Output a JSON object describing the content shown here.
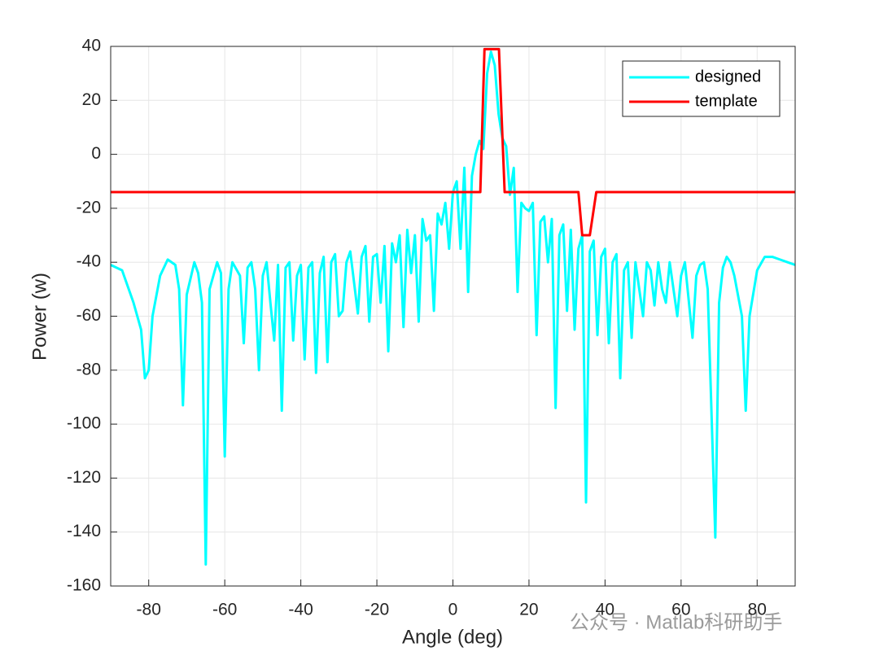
{
  "chart_data": {
    "type": "line",
    "xlabel": "Angle (deg)",
    "ylabel": "Power (w)",
    "xlim": [
      -90,
      90
    ],
    "ylim": [
      -160,
      40
    ],
    "xticks": [
      -80,
      -60,
      -40,
      -20,
      0,
      20,
      40,
      60,
      80
    ],
    "yticks": [
      -160,
      -140,
      -120,
      -100,
      -80,
      -60,
      -40,
      -20,
      0,
      20,
      40
    ],
    "grid": true,
    "legend": "northeast",
    "annotation": "公众号 · Matlab科研助手",
    "series": [
      {
        "name": "designed",
        "color": "#00ffff",
        "x": [
          -90,
          -87,
          -84,
          -82,
          -81,
          -80,
          -79,
          -77,
          -75,
          -73,
          -72,
          -71,
          -70,
          -68,
          -67,
          -66,
          -65,
          -64,
          -62,
          -61,
          -60,
          -59,
          -58,
          -56,
          -55,
          -54,
          -53,
          -52,
          -51,
          -50,
          -49,
          -48,
          -47,
          -46,
          -45,
          -44,
          -43,
          -42,
          -41,
          -40,
          -39,
          -38,
          -37,
          -36,
          -35,
          -34,
          -33,
          -32,
          -31,
          -30,
          -29,
          -28,
          -27,
          -25,
          -24,
          -23,
          -22,
          -21,
          -20,
          -19,
          -18,
          -17,
          -16,
          -15,
          -14,
          -13,
          -12,
          -11,
          -10,
          -9,
          -8,
          -7,
          -6,
          -5,
          -4,
          -3,
          -2,
          -1,
          0,
          1,
          2,
          3,
          4,
          5,
          6,
          7,
          8,
          9,
          10,
          11,
          12,
          13,
          14,
          15,
          16,
          17,
          18,
          19,
          20,
          21,
          22,
          23,
          24,
          25,
          26,
          27,
          28,
          29,
          30,
          31,
          32,
          33,
          34,
          35,
          36,
          37,
          38,
          39,
          40,
          41,
          42,
          43,
          44,
          45,
          46,
          47,
          48,
          49,
          50,
          51,
          52,
          53,
          54,
          55,
          56,
          57,
          59,
          60,
          61,
          63,
          64,
          65,
          66,
          67,
          69,
          70,
          71,
          72,
          73,
          74,
          76,
          77,
          78,
          80,
          82,
          84,
          86,
          88,
          90
        ],
        "values": [
          -41,
          -43,
          -55,
          -65,
          -83,
          -80,
          -60,
          -45,
          -39,
          -41,
          -50,
          -93,
          -52,
          -40,
          -44,
          -55,
          -152,
          -50,
          -40,
          -44,
          -112,
          -50,
          -40,
          -45,
          -70,
          -42,
          -40,
          -50,
          -80,
          -45,
          -40,
          -55,
          -69,
          -41,
          -95,
          -42,
          -40,
          -69,
          -45,
          -41,
          -76,
          -42,
          -40,
          -81,
          -44,
          -38,
          -77,
          -40,
          -37,
          -60,
          -58,
          -40,
          -36,
          -59,
          -38,
          -34,
          -62,
          -38,
          -37,
          -55,
          -34,
          -73,
          -33,
          -40,
          -30,
          -64,
          -28,
          -44,
          -30,
          -62,
          -24,
          -32,
          -30,
          -58,
          -22,
          -26,
          -18,
          -35,
          -14,
          -10,
          -35,
          -5,
          -51,
          -8,
          0,
          5,
          2,
          30,
          38,
          33,
          15,
          6,
          3,
          -15,
          -5,
          -51,
          -18,
          -20,
          -21,
          -18,
          -67,
          -25,
          -23,
          -40,
          -24,
          -94,
          -30,
          -26,
          -58,
          -28,
          -65,
          -35,
          -30,
          -129,
          -36,
          -32,
          -67,
          -38,
          -35,
          -70,
          -40,
          -37,
          -83,
          -43,
          -40,
          -68,
          -40,
          -50,
          -60,
          -40,
          -43,
          -56,
          -40,
          -50,
          -55,
          -40,
          -60,
          -45,
          -40,
          -68,
          -45,
          -41,
          -40,
          -50,
          -142,
          -55,
          -42,
          -38,
          -40,
          -45,
          -60,
          -95,
          -60,
          -43,
          -38,
          -38,
          -39,
          -40,
          -41
        ]
      },
      {
        "name": "template",
        "color": "#ff0000",
        "x": [
          -90,
          7.2,
          8.3,
          12.1,
          13.6,
          33,
          34,
          36,
          37.7,
          90
        ],
        "values": [
          -14,
          -14,
          39,
          39,
          -14,
          -14,
          -30,
          -30,
          -14,
          -14
        ]
      }
    ]
  }
}
